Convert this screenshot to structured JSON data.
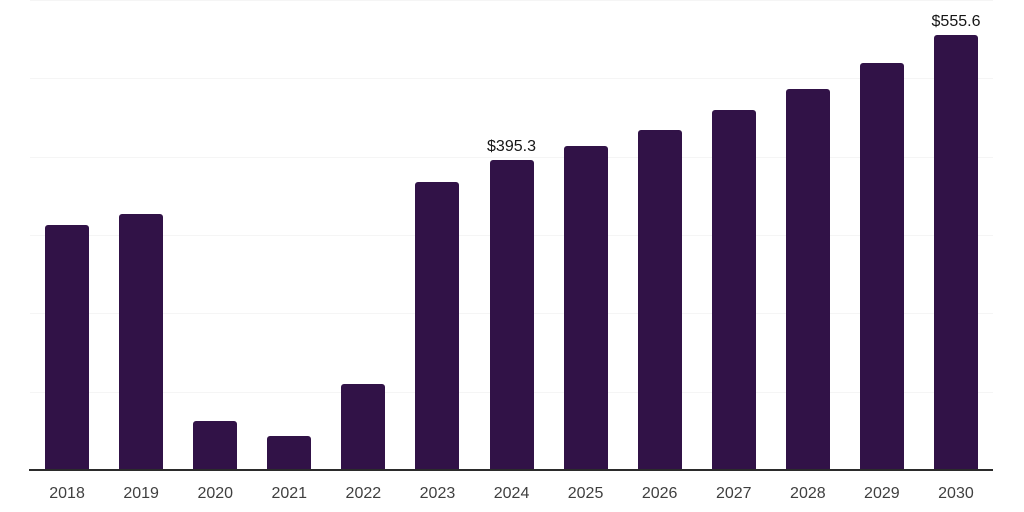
{
  "chart_data": {
    "type": "bar",
    "title": "",
    "xlabel": "",
    "ylabel": "",
    "categories": [
      "2018",
      "2019",
      "2020",
      "2021",
      "2022",
      "2023",
      "2024",
      "2025",
      "2026",
      "2027",
      "2028",
      "2029",
      "2030"
    ],
    "values": [
      313.1,
      327.3,
      62.5,
      43.4,
      109.7,
      367.8,
      395.3,
      413.4,
      434.5,
      459.1,
      486.9,
      519.4,
      555.6
    ],
    "annotations": [
      {
        "category": "2024",
        "text": "$395.3"
      },
      {
        "category": "2030",
        "text": "$555.6"
      }
    ],
    "ylim": [
      0,
      600
    ],
    "grid_step": 100,
    "grid": "horizontal",
    "y_axis_labels_visible": false,
    "legend": "none",
    "colors": {
      "bar": "#311247",
      "gridline": "#f5f5f5",
      "axis": "#2b2b2b",
      "tick_label": "#3f3f3f",
      "data_label": "#161616",
      "background": "#ffffff"
    }
  }
}
